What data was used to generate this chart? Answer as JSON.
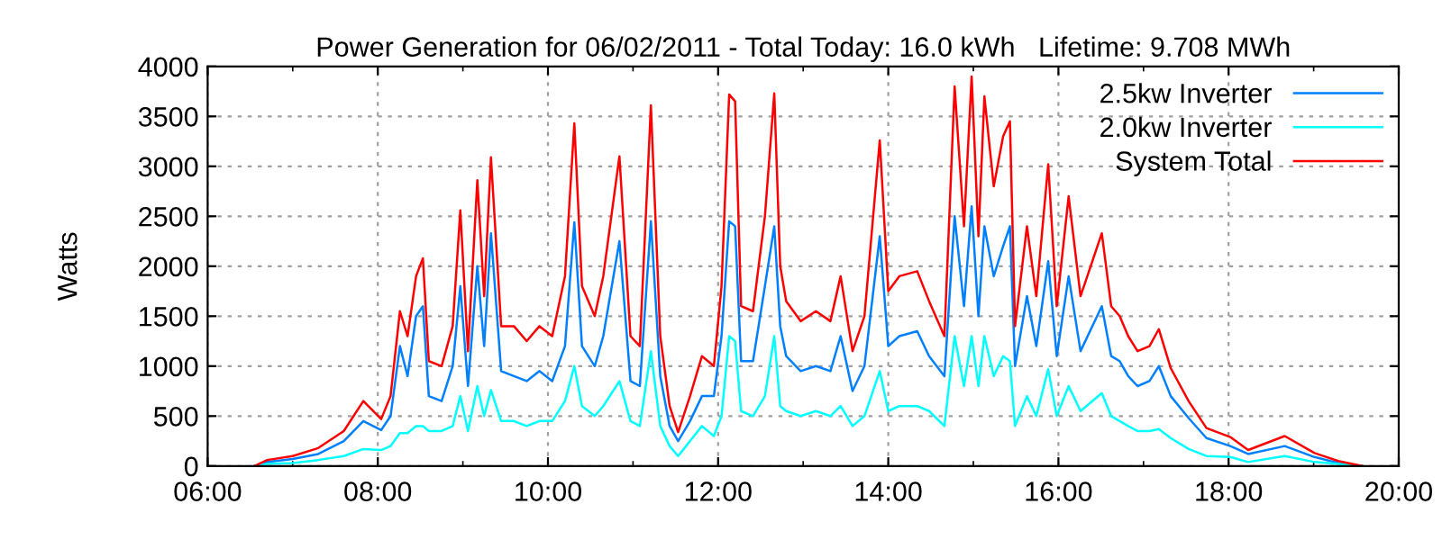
{
  "chart_data": {
    "type": "line",
    "title": "Power Generation for 06/02/2011 - Total Today: 16.0 kWh   Lifetime: 9.708 MWh",
    "ylabel": "Watts",
    "x": [
      6.55,
      6.7,
      7.0,
      7.3,
      7.6,
      7.83,
      8.04,
      8.15,
      8.26,
      8.35,
      8.45,
      8.53,
      8.6,
      8.75,
      8.88,
      8.97,
      9.06,
      9.17,
      9.25,
      9.33,
      9.45,
      9.6,
      9.75,
      9.9,
      10.05,
      10.2,
      10.31,
      10.4,
      10.55,
      10.65,
      10.84,
      10.97,
      11.08,
      11.21,
      11.32,
      11.43,
      11.53,
      11.67,
      11.81,
      11.95,
      12.04,
      12.13,
      12.2,
      12.27,
      12.41,
      12.55,
      12.66,
      12.73,
      12.8,
      12.97,
      13.15,
      13.32,
      13.44,
      13.58,
      13.72,
      13.9,
      14.0,
      14.13,
      14.34,
      14.48,
      14.66,
      14.78,
      14.89,
      14.98,
      15.06,
      15.13,
      15.24,
      15.35,
      15.43,
      15.49,
      15.63,
      15.74,
      15.88,
      15.98,
      16.12,
      16.26,
      16.51,
      16.62,
      16.72,
      16.82,
      16.93,
      17.07,
      17.18,
      17.32,
      17.53,
      17.74,
      18.02,
      18.23,
      18.66,
      19.01,
      19.29,
      19.57
    ],
    "series": [
      {
        "name": "2.5kw Inverter",
        "color": "#0080ff",
        "values": [
          0,
          40,
          70,
          120,
          250,
          450,
          360,
          500,
          1200,
          900,
          1500,
          1600,
          700,
          650,
          1000,
          1800,
          800,
          2000,
          1200,
          2330,
          950,
          900,
          850,
          950,
          850,
          1200,
          2440,
          1200,
          1000,
          1300,
          2250,
          850,
          800,
          2450,
          900,
          400,
          250,
          450,
          700,
          700,
          1300,
          2450,
          2400,
          1050,
          1050,
          1800,
          2400,
          1400,
          1100,
          950,
          1000,
          950,
          1300,
          750,
          1000,
          2300,
          1200,
          1300,
          1350,
          1100,
          900,
          2500,
          1600,
          2600,
          1500,
          2400,
          1900,
          2200,
          2400,
          1000,
          1700,
          1200,
          2050,
          1100,
          1900,
          1150,
          1600,
          1100,
          1050,
          900,
          800,
          850,
          1000,
          700,
          480,
          280,
          200,
          120,
          200,
          90,
          30,
          0
        ]
      },
      {
        "name": "2.0kw Inverter",
        "color": "#00ffff",
        "values": [
          0,
          20,
          30,
          60,
          100,
          170,
          160,
          200,
          330,
          330,
          400,
          400,
          350,
          350,
          400,
          700,
          350,
          800,
          500,
          760,
          450,
          450,
          400,
          450,
          450,
          650,
          1000,
          600,
          500,
          600,
          850,
          450,
          400,
          1150,
          400,
          200,
          100,
          250,
          400,
          300,
          500,
          1300,
          1250,
          550,
          500,
          700,
          1300,
          600,
          550,
          500,
          550,
          500,
          600,
          400,
          500,
          950,
          550,
          600,
          600,
          550,
          400,
          1300,
          800,
          1300,
          800,
          1300,
          900,
          1100,
          1050,
          400,
          700,
          500,
          970,
          500,
          800,
          550,
          730,
          500,
          450,
          400,
          350,
          350,
          370,
          280,
          170,
          100,
          90,
          40,
          100,
          40,
          20,
          0
        ]
      },
      {
        "name": "System Total",
        "color": "#ff0000",
        "values": [
          0,
          60,
          100,
          180,
          350,
          650,
          470,
          700,
          1550,
          1300,
          1900,
          2080,
          1050,
          1000,
          1400,
          2560,
          1150,
          2860,
          1700,
          3090,
          1400,
          1400,
          1250,
          1400,
          1300,
          1900,
          3430,
          1800,
          1500,
          1900,
          3100,
          1300,
          1200,
          3610,
          1300,
          600,
          340,
          700,
          1100,
          1000,
          1800,
          3720,
          3650,
          1600,
          1550,
          2500,
          3730,
          2000,
          1650,
          1450,
          1550,
          1450,
          1900,
          1150,
          1500,
          3260,
          1750,
          1900,
          1950,
          1650,
          1300,
          3800,
          2400,
          3900,
          2300,
          3700,
          2800,
          3300,
          3450,
          1400,
          2400,
          1700,
          3020,
          1600,
          2700,
          1700,
          2330,
          1600,
          1500,
          1300,
          1150,
          1200,
          1370,
          980,
          650,
          380,
          290,
          160,
          300,
          130,
          50,
          0
        ]
      }
    ],
    "xlim": [
      6,
      20
    ],
    "xticks": [
      {
        "value": 6,
        "label": "06:00"
      },
      {
        "value": 7,
        "label": null
      },
      {
        "value": 8,
        "label": "08:00"
      },
      {
        "value": 9,
        "label": null
      },
      {
        "value": 10,
        "label": "10:00"
      },
      {
        "value": 11,
        "label": null
      },
      {
        "value": 12,
        "label": "12:00"
      },
      {
        "value": 13,
        "label": null
      },
      {
        "value": 14,
        "label": "14:00"
      },
      {
        "value": 15,
        "label": null
      },
      {
        "value": 16,
        "label": "16:00"
      },
      {
        "value": 17,
        "label": null
      },
      {
        "value": 18,
        "label": "18:00"
      },
      {
        "value": 19,
        "label": null
      },
      {
        "value": 20,
        "label": "20:00"
      }
    ],
    "ylim": [
      0,
      4000
    ],
    "yticks": [
      0,
      500,
      1000,
      1500,
      2000,
      2500,
      3000,
      3500,
      4000
    ],
    "grid": true,
    "legend": "top right",
    "line_style": "solid",
    "marker": "none"
  }
}
